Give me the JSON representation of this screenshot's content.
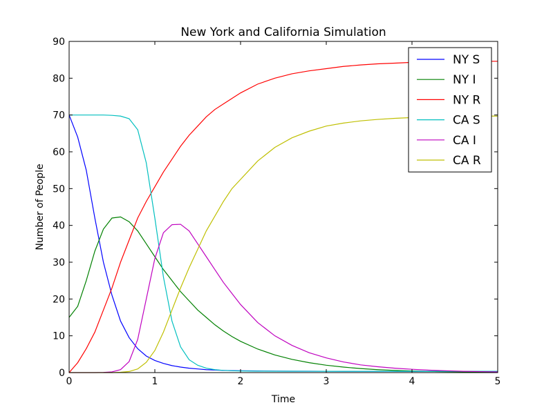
{
  "chart_data": {
    "type": "line",
    "title": "New York and California Simulation",
    "xlabel": "Time",
    "ylabel": "Number of People",
    "xlim": [
      0,
      5
    ],
    "ylim": [
      0,
      90
    ],
    "xticks": [
      0,
      1,
      2,
      3,
      4,
      5
    ],
    "yticks": [
      0,
      10,
      20,
      30,
      40,
      50,
      60,
      70,
      80,
      90
    ],
    "grid": false,
    "legend_position": "top-right",
    "x": [
      0,
      0.1,
      0.2,
      0.3,
      0.4,
      0.5,
      0.6,
      0.7,
      0.8,
      0.9,
      1.0,
      1.1,
      1.2,
      1.3,
      1.4,
      1.5,
      1.6,
      1.7,
      1.8,
      1.9,
      2.0,
      2.2,
      2.4,
      2.6,
      2.8,
      3.0,
      3.2,
      3.4,
      3.6,
      3.8,
      4.0,
      4.2,
      4.4,
      4.6,
      4.8,
      5.0
    ],
    "series": [
      {
        "name": "NY S",
        "color": "#0000ff",
        "values": [
          70,
          64,
          55,
          42,
          30,
          21,
          14,
          9.5,
          6.5,
          4.5,
          3.3,
          2.5,
          1.9,
          1.5,
          1.2,
          1.0,
          0.8,
          0.7,
          0.6,
          0.55,
          0.5,
          0.45,
          0.4,
          0.38,
          0.37,
          0.36,
          0.35,
          0.35,
          0.34,
          0.34,
          0.34,
          0.33,
          0.33,
          0.33,
          0.33,
          0.33
        ]
      },
      {
        "name": "NY I",
        "color": "#008000",
        "values": [
          15,
          18,
          25,
          33,
          39,
          42,
          42.3,
          41,
          38.5,
          35,
          31.5,
          28,
          25,
          22,
          19.5,
          17,
          15,
          13,
          11.3,
          9.8,
          8.5,
          6.4,
          4.8,
          3.6,
          2.7,
          2.0,
          1.5,
          1.1,
          0.8,
          0.6,
          0.45,
          0.33,
          0.25,
          0.2,
          0.15,
          0.12
        ]
      },
      {
        "name": "NY R",
        "color": "#ff0000",
        "values": [
          0,
          2.7,
          6.5,
          11,
          17,
          23,
          30,
          36,
          42,
          46.5,
          50.5,
          54.5,
          58,
          61.5,
          64.5,
          67,
          69.5,
          71.5,
          73,
          74.5,
          76,
          78.4,
          80,
          81.2,
          82,
          82.6,
          83.2,
          83.6,
          83.9,
          84.1,
          84.3,
          84.4,
          84.5,
          84.6,
          84.6,
          84.6
        ]
      },
      {
        "name": "CA S",
        "color": "#00bfbf",
        "values": [
          70,
          70,
          70,
          70,
          70,
          69.9,
          69.7,
          69,
          66,
          57,
          42,
          26,
          14,
          7,
          3.5,
          2,
          1.2,
          0.8,
          0.6,
          0.5,
          0.45,
          0.4,
          0.38,
          0.37,
          0.36,
          0.35,
          0.35,
          0.35,
          0.35,
          0.35,
          0.35,
          0.35,
          0.35,
          0.35,
          0.35,
          0.35
        ]
      },
      {
        "name": "CA I",
        "color": "#bf00bf",
        "values": [
          0,
          0,
          0,
          0,
          0.05,
          0.2,
          0.8,
          3,
          9,
          20,
          31,
          38,
          40.2,
          40.3,
          38.5,
          35,
          31.5,
          28,
          24.5,
          21.5,
          18.5,
          13.6,
          10,
          7.4,
          5.4,
          4.0,
          2.9,
          2.1,
          1.6,
          1.2,
          0.9,
          0.65,
          0.5,
          0.35,
          0.27,
          0.2
        ]
      },
      {
        "name": "CA R",
        "color": "#bfbf00",
        "values": [
          0,
          0,
          0,
          0,
          0,
          0,
          0.1,
          0.3,
          1,
          2.8,
          6,
          11,
          17,
          23,
          28.5,
          33.5,
          38.5,
          42.5,
          46.5,
          50,
          52.5,
          57.5,
          61.2,
          63.8,
          65.6,
          67,
          67.8,
          68.4,
          68.8,
          69.1,
          69.3,
          69.5,
          69.6,
          69.7,
          69.7,
          69.7
        ]
      }
    ]
  }
}
